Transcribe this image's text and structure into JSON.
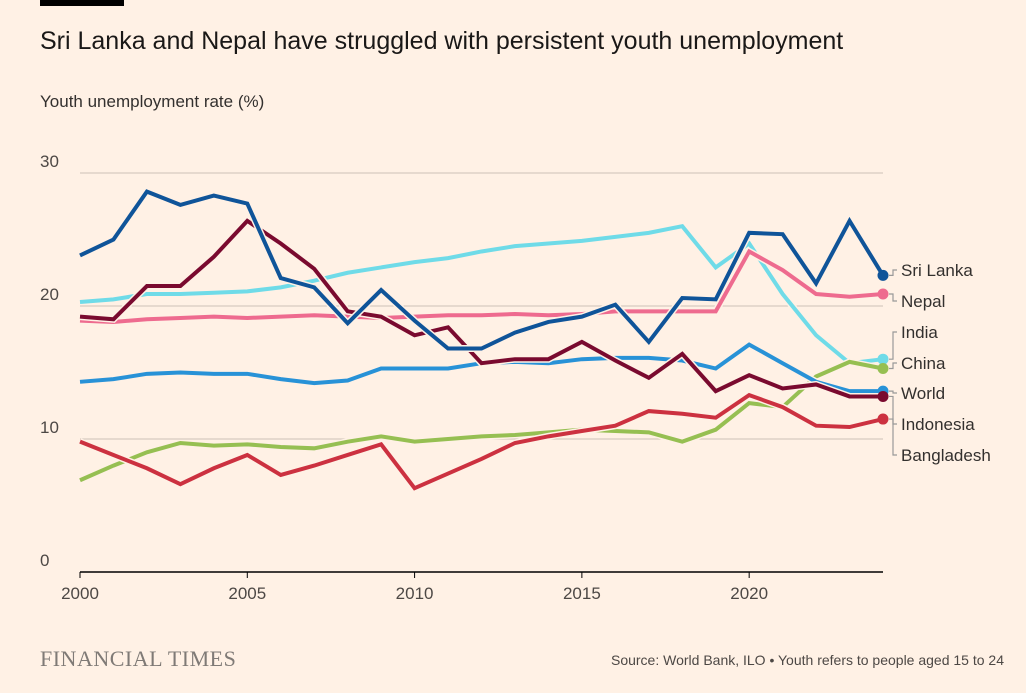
{
  "title": "Sri Lanka and Nepal have struggled with persistent youth unemployment",
  "brand": "FINANCIAL TIMES",
  "source": "Source: World Bank, ILO • Youth refers to people aged 15 to 24",
  "chart_data": {
    "type": "line",
    "title": "Sri Lanka and Nepal have struggled with persistent youth unemployment",
    "ylabel": "Youth unemployment rate (%)",
    "xlabel": "",
    "xlim": [
      2000,
      2024
    ],
    "ylim": [
      0,
      30
    ],
    "x_ticks": [
      "2000",
      "2005",
      "2010",
      "2015",
      "2020"
    ],
    "y_ticks": [
      "0",
      "10",
      "20",
      "30"
    ],
    "grid": true,
    "legend": "right-end labels",
    "x": [
      2000,
      2001,
      2002,
      2003,
      2004,
      2005,
      2006,
      2007,
      2008,
      2009,
      2010,
      2011,
      2012,
      2013,
      2014,
      2015,
      2016,
      2017,
      2018,
      2019,
      2020,
      2021,
      2022,
      2023,
      2024
    ],
    "series": [
      {
        "name": "India",
        "color": "#6fdbe8",
        "values": [
          20.3,
          20.5,
          20.9,
          20.9,
          21.0,
          21.1,
          21.4,
          21.9,
          22.5,
          22.9,
          23.3,
          23.6,
          24.1,
          24.5,
          24.7,
          24.9,
          25.2,
          25.5,
          26.0,
          22.9,
          24.7,
          20.9,
          17.8,
          15.7,
          16.0
        ]
      },
      {
        "name": "China",
        "color": "#96bf52",
        "values": [
          6.9,
          8.0,
          9.0,
          9.7,
          9.5,
          9.6,
          9.4,
          9.3,
          9.8,
          10.2,
          9.8,
          10.0,
          10.2,
          10.3,
          10.5,
          10.7,
          10.6,
          10.5,
          9.8,
          10.7,
          12.7,
          12.4,
          14.7,
          15.8,
          15.3
        ]
      },
      {
        "name": "World",
        "color": "#2892d7",
        "values": [
          14.3,
          14.5,
          14.9,
          15.0,
          14.9,
          14.9,
          14.5,
          14.2,
          14.4,
          15.3,
          15.3,
          15.3,
          15.7,
          15.8,
          15.7,
          16.0,
          16.1,
          16.1,
          15.9,
          15.3,
          17.1,
          15.7,
          14.3,
          13.6,
          13.6
        ]
      },
      {
        "name": "Bangladesh",
        "color": "#cc3140",
        "values": [
          9.8,
          8.8,
          7.8,
          6.6,
          7.8,
          8.8,
          7.3,
          8.0,
          8.8,
          9.6,
          6.3,
          7.4,
          8.5,
          9.7,
          10.2,
          10.6,
          11.0,
          12.1,
          11.9,
          11.6,
          13.3,
          12.4,
          11.0,
          10.9,
          11.5
        ]
      },
      {
        "name": "Nepal",
        "color": "#ee6b8f",
        "values": [
          18.9,
          18.8,
          19.0,
          19.1,
          19.2,
          19.1,
          19.2,
          19.3,
          19.2,
          19.1,
          19.2,
          19.3,
          19.3,
          19.4,
          19.3,
          19.4,
          19.6,
          19.6,
          19.6,
          19.6,
          24.1,
          22.7,
          20.9,
          20.7,
          20.9
        ]
      },
      {
        "name": "Indonesia",
        "color": "#7a0a2f",
        "values": [
          19.2,
          19.0,
          21.5,
          21.5,
          23.7,
          26.4,
          24.7,
          22.8,
          19.6,
          19.2,
          17.8,
          18.4,
          15.7,
          16.0,
          16.0,
          17.3,
          15.9,
          14.6,
          16.4,
          13.6,
          14.8,
          13.8,
          14.1,
          13.2,
          13.2
        ]
      },
      {
        "name": "Sri Lanka",
        "color": "#0f5499",
        "values": [
          23.8,
          25.0,
          28.6,
          27.6,
          28.3,
          27.7,
          22.1,
          21.4,
          18.7,
          21.2,
          18.9,
          16.8,
          16.8,
          18.0,
          18.8,
          19.2,
          20.1,
          17.3,
          20.6,
          20.5,
          25.5,
          25.4,
          21.7,
          26.4,
          22.3
        ]
      }
    ],
    "label_order": [
      "Sri Lanka",
      "Nepal",
      "India",
      "China",
      "World",
      "Indonesia",
      "Bangladesh"
    ]
  }
}
